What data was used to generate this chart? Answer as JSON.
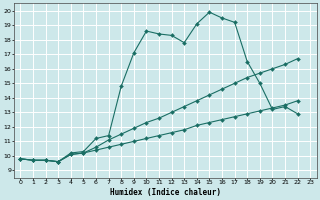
{
  "xlabel": "Humidex (Indice chaleur)",
  "bg_color": "#cde8ea",
  "grid_color": "#ffffff",
  "line_color": "#1a6e64",
  "xlim": [
    -0.5,
    23.5
  ],
  "ylim": [
    8.5,
    20.5
  ],
  "xticks": [
    0,
    1,
    2,
    3,
    4,
    5,
    6,
    7,
    8,
    9,
    10,
    11,
    12,
    13,
    14,
    15,
    16,
    17,
    18,
    19,
    20,
    21,
    22,
    23
  ],
  "yticks": [
    9,
    10,
    11,
    12,
    13,
    14,
    15,
    16,
    17,
    18,
    19,
    20
  ],
  "series": [
    {
      "x": [
        0,
        1,
        2,
        3,
        4,
        5,
        6,
        7,
        8,
        9,
        10,
        11,
        12,
        13,
        14,
        15,
        16,
        17,
        18,
        19,
        20,
        21,
        22
      ],
      "y": [
        9.8,
        9.7,
        9.7,
        9.6,
        10.2,
        10.3,
        11.2,
        11.4,
        14.8,
        17.1,
        18.6,
        18.4,
        18.3,
        17.8,
        19.1,
        19.9,
        19.5,
        19.2,
        16.5,
        15.0,
        13.2,
        13.4,
        12.9
      ]
    },
    {
      "x": [
        0,
        1,
        2,
        3,
        4,
        5,
        6,
        7,
        8,
        9,
        10,
        11,
        12,
        13,
        14,
        15,
        16,
        17,
        18,
        19,
        20,
        21,
        22
      ],
      "y": [
        9.8,
        9.7,
        9.7,
        9.6,
        10.1,
        10.2,
        10.6,
        11.1,
        11.5,
        11.9,
        12.3,
        12.6,
        13.0,
        13.4,
        13.8,
        14.2,
        14.6,
        15.0,
        15.4,
        15.7,
        16.0,
        16.3,
        16.7
      ]
    },
    {
      "x": [
        0,
        1,
        2,
        3,
        4,
        5,
        6,
        7,
        8,
        9,
        10,
        11,
        12,
        13,
        14,
        15,
        16,
        17,
        18,
        19,
        20,
        21,
        22
      ],
      "y": [
        9.8,
        9.7,
        9.7,
        9.6,
        10.1,
        10.2,
        10.4,
        10.6,
        10.8,
        11.0,
        11.2,
        11.4,
        11.6,
        11.8,
        12.1,
        12.3,
        12.5,
        12.7,
        12.9,
        13.1,
        13.3,
        13.5,
        13.8
      ]
    }
  ]
}
